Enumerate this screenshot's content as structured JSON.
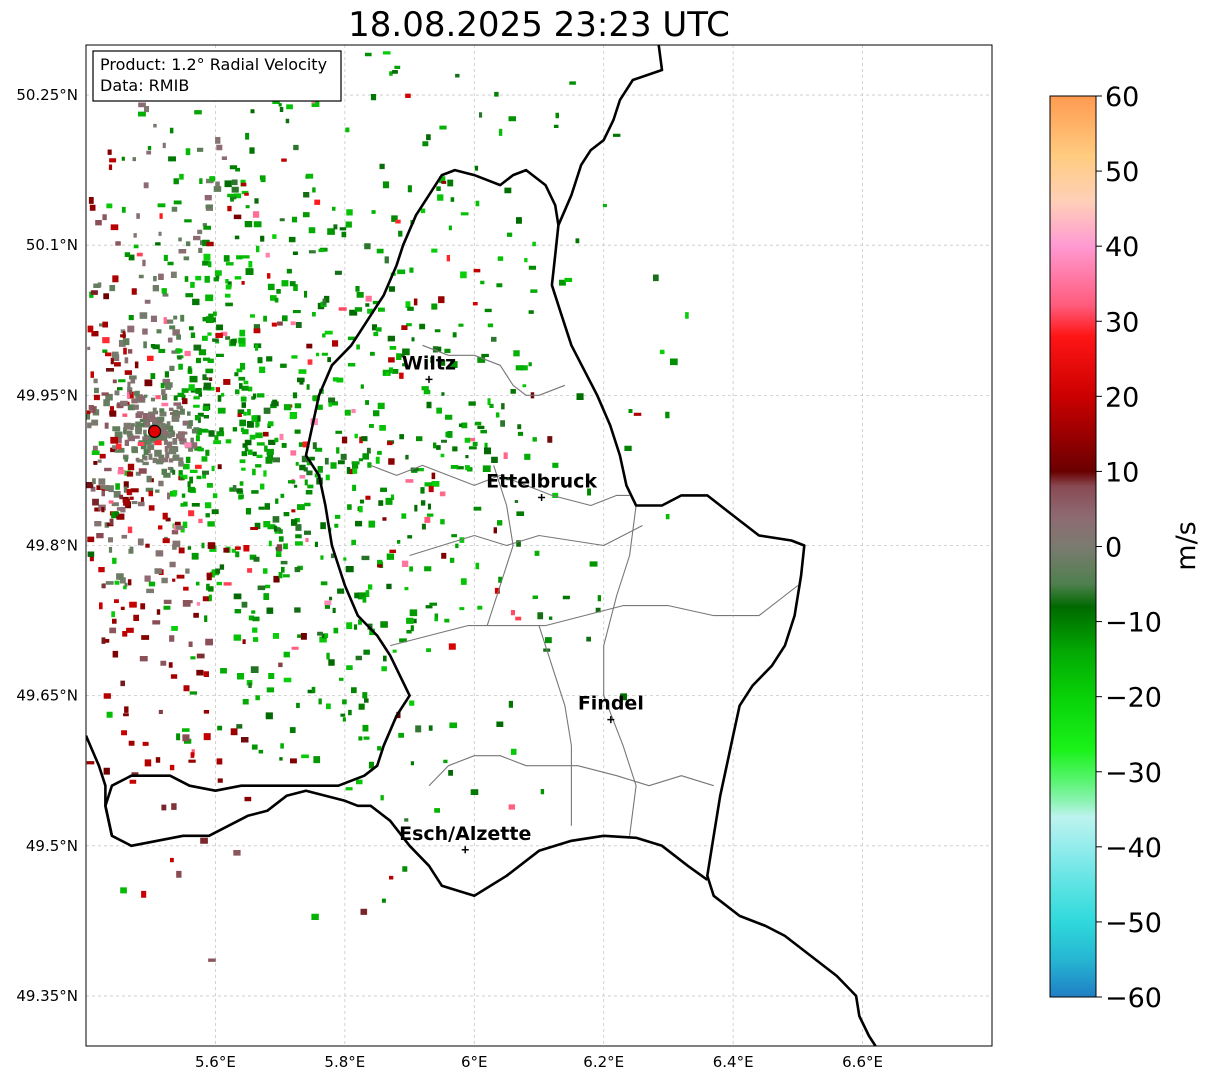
{
  "map": {
    "title": "18.08.2025 23:23 UTC",
    "info_box": {
      "product": "Product: 1.2° Radial Velocity",
      "data": "Data: RMIB"
    },
    "extent": {
      "lon_min": 5.4,
      "lon_max": 6.8,
      "lat_min": 49.3,
      "lat_max": 50.3
    },
    "lon_ticks": [
      {
        "value": 5.6,
        "label": "5.6°E"
      },
      {
        "value": 5.8,
        "label": "5.8°E"
      },
      {
        "value": 6.0,
        "label": "6°E"
      },
      {
        "value": 6.2,
        "label": "6.2°E"
      },
      {
        "value": 6.4,
        "label": "6.4°E"
      },
      {
        "value": 6.6,
        "label": "6.6°E"
      }
    ],
    "lat_ticks": [
      {
        "value": 50.25,
        "label": "50.25°N"
      },
      {
        "value": 50.1,
        "label": "50.1°N"
      },
      {
        "value": 49.95,
        "label": "49.95°N"
      },
      {
        "value": 49.8,
        "label": "49.8°N"
      },
      {
        "value": 49.65,
        "label": "49.65°N"
      },
      {
        "value": 49.5,
        "label": "49.5°N"
      },
      {
        "value": 49.35,
        "label": "49.35°N"
      }
    ],
    "radar_site": {
      "lon": 5.506,
      "lat": 49.914
    },
    "cities": [
      {
        "name": "Wiltz",
        "lon": 5.93,
        "lat": 49.966
      },
      {
        "name": "Ettelbruck",
        "lon": 6.104,
        "lat": 49.848
      },
      {
        "name": "Findel",
        "lon": 6.211,
        "lat": 49.626
      },
      {
        "name": "Esch/Alzette",
        "lon": 5.986,
        "lat": 49.496
      }
    ],
    "grid": true,
    "colorbar": {
      "label": "m/s",
      "min": -60,
      "max": 60,
      "ticks": [
        {
          "value": 60,
          "label": "60"
        },
        {
          "value": 50,
          "label": "50"
        },
        {
          "value": 40,
          "label": "40"
        },
        {
          "value": 30,
          "label": "30"
        },
        {
          "value": 20,
          "label": "20"
        },
        {
          "value": 10,
          "label": "10"
        },
        {
          "value": 0,
          "label": "0"
        },
        {
          "value": -10,
          "label": "−10"
        },
        {
          "value": -20,
          "label": "−20"
        },
        {
          "value": -30,
          "label": "−30"
        },
        {
          "value": -40,
          "label": "−40"
        },
        {
          "value": -50,
          "label": "−50"
        },
        {
          "value": -60,
          "label": "−60"
        }
      ],
      "stops": [
        {
          "value": -60,
          "color": "#1f7fc4"
        },
        {
          "value": -55,
          "color": "#26b6d2"
        },
        {
          "value": -50,
          "color": "#2fd9dc"
        },
        {
          "value": -45,
          "color": "#5ee3e3"
        },
        {
          "value": -40,
          "color": "#94ecec"
        },
        {
          "value": -36,
          "color": "#bdf3ef"
        },
        {
          "value": -34,
          "color": "#8ef3b4"
        },
        {
          "value": -31,
          "color": "#55f46d"
        },
        {
          "value": -27,
          "color": "#19f219"
        },
        {
          "value": -20,
          "color": "#08d108"
        },
        {
          "value": -14,
          "color": "#03a903"
        },
        {
          "value": -8,
          "color": "#006900"
        },
        {
          "value": -5,
          "color": "#4f7f4f"
        },
        {
          "value": 0,
          "color": "#7b7b70"
        },
        {
          "value": 4,
          "color": "#8e6a72"
        },
        {
          "value": 8,
          "color": "#894a52"
        },
        {
          "value": 10,
          "color": "#6a0000"
        },
        {
          "value": 20,
          "color": "#cc0000"
        },
        {
          "value": 28,
          "color": "#ff1515"
        },
        {
          "value": 32,
          "color": "#ff5a7a"
        },
        {
          "value": 40,
          "color": "#ff9ad2"
        },
        {
          "value": 46,
          "color": "#ffd0b8"
        },
        {
          "value": 52,
          "color": "#ffcc80"
        },
        {
          "value": 60,
          "color": "#ff9a50"
        }
      ]
    },
    "colors": {
      "border": "#000000",
      "canton_border": "#777777",
      "grid": "#c8c8c8",
      "radar_marker": "#e00000"
    },
    "country_border": [
      [
        6.285,
        50.3
      ],
      [
        6.29,
        50.275
      ],
      [
        6.245,
        50.265
      ],
      [
        6.225,
        50.245
      ],
      [
        6.215,
        50.225
      ],
      [
        6.2,
        50.205
      ],
      [
        6.18,
        50.195
      ],
      [
        6.165,
        50.18
      ],
      [
        6.15,
        50.15
      ],
      [
        6.14,
        50.135
      ],
      [
        6.13,
        50.12
      ],
      [
        6.125,
        50.09
      ],
      [
        6.12,
        50.06
      ],
      [
        6.135,
        50.03
      ],
      [
        6.15,
        50.0
      ],
      [
        6.17,
        49.975
      ],
      [
        6.19,
        49.95
      ],
      [
        6.21,
        49.92
      ],
      [
        6.225,
        49.89
      ],
      [
        6.235,
        49.86
      ],
      [
        6.25,
        49.84
      ],
      [
        6.29,
        49.84
      ],
      [
        6.32,
        49.85
      ],
      [
        6.36,
        49.85
      ],
      [
        6.4,
        49.83
      ],
      [
        6.44,
        49.81
      ],
      [
        6.49,
        49.805
      ],
      [
        6.51,
        49.8
      ],
      [
        6.505,
        49.77
      ],
      [
        6.495,
        49.73
      ],
      [
        6.48,
        49.7
      ],
      [
        6.46,
        49.68
      ],
      [
        6.43,
        49.66
      ],
      [
        6.41,
        49.64
      ],
      [
        6.4,
        49.61
      ],
      [
        6.39,
        49.58
      ],
      [
        6.38,
        49.55
      ],
      [
        6.37,
        49.51
      ],
      [
        6.36,
        49.47
      ],
      [
        6.37,
        49.45
      ],
      [
        6.41,
        49.43
      ],
      [
        6.45,
        49.42
      ],
      [
        6.48,
        49.41
      ],
      [
        6.52,
        49.39
      ],
      [
        6.56,
        49.37
      ],
      [
        6.59,
        49.35
      ],
      [
        6.595,
        49.33
      ],
      [
        6.61,
        49.31
      ],
      [
        6.62,
        49.3
      ]
    ],
    "lu_border": [
      [
        6.36,
        49.466
      ],
      [
        6.33,
        49.48
      ],
      [
        6.29,
        49.5
      ],
      [
        6.25,
        49.508
      ],
      [
        6.2,
        49.51
      ],
      [
        6.15,
        49.505
      ],
      [
        6.1,
        49.495
      ],
      [
        6.05,
        49.47
      ],
      [
        6.0,
        49.45
      ],
      [
        5.95,
        49.46
      ],
      [
        5.93,
        49.48
      ],
      [
        5.9,
        49.5
      ],
      [
        5.87,
        49.525
      ],
      [
        5.84,
        49.54
      ],
      [
        5.82,
        49.54
      ],
      [
        5.8,
        49.545
      ],
      [
        5.77,
        49.55
      ],
      [
        5.74,
        49.555
      ],
      [
        5.71,
        49.55
      ],
      [
        5.68,
        49.535
      ],
      [
        5.65,
        49.53
      ],
      [
        5.62,
        49.52
      ],
      [
        5.59,
        49.51
      ],
      [
        5.55,
        49.51
      ],
      [
        5.51,
        49.505
      ],
      [
        5.47,
        49.5
      ],
      [
        5.44,
        49.51
      ],
      [
        5.43,
        49.54
      ],
      [
        5.44,
        49.56
      ],
      [
        5.47,
        49.57
      ],
      [
        5.5,
        49.57
      ],
      [
        5.53,
        49.57
      ],
      [
        5.56,
        49.56
      ],
      [
        5.6,
        49.555
      ],
      [
        5.64,
        49.56
      ],
      [
        5.7,
        49.56
      ],
      [
        5.75,
        49.56
      ],
      [
        5.79,
        49.56
      ],
      [
        5.83,
        49.57
      ],
      [
        5.85,
        49.58
      ],
      [
        5.86,
        49.6
      ],
      [
        5.88,
        49.63
      ],
      [
        5.9,
        49.65
      ],
      [
        5.87,
        49.69
      ],
      [
        5.85,
        49.71
      ],
      [
        5.82,
        49.73
      ],
      [
        5.8,
        49.76
      ],
      [
        5.78,
        49.8
      ],
      [
        5.77,
        49.84
      ],
      [
        5.76,
        49.87
      ],
      [
        5.74,
        49.89
      ],
      [
        5.75,
        49.92
      ],
      [
        5.76,
        49.95
      ],
      [
        5.78,
        49.98
      ],
      [
        5.81,
        50.0
      ],
      [
        5.84,
        50.03
      ],
      [
        5.86,
        50.05
      ],
      [
        5.88,
        50.08
      ],
      [
        5.89,
        50.1
      ],
      [
        5.91,
        50.13
      ],
      [
        5.93,
        50.15
      ],
      [
        5.95,
        50.17
      ],
      [
        5.97,
        50.175
      ],
      [
        6.0,
        50.17
      ],
      [
        6.02,
        50.165
      ],
      [
        6.04,
        50.16
      ],
      [
        6.06,
        50.17
      ],
      [
        6.08,
        50.175
      ],
      [
        6.11,
        50.16
      ],
      [
        6.125,
        50.14
      ],
      [
        6.13,
        50.12
      ]
    ],
    "fr_border": [
      [
        5.4,
        49.61
      ],
      [
        5.42,
        49.58
      ],
      [
        5.43,
        49.56
      ],
      [
        5.43,
        49.54
      ],
      [
        5.44,
        49.51
      ]
    ],
    "canton_borders": [
      [
        [
          5.92,
          50.0
        ],
        [
          5.96,
          49.99
        ],
        [
          6.0,
          49.99
        ],
        [
          6.04,
          49.98
        ],
        [
          6.06,
          49.96
        ],
        [
          6.08,
          49.95
        ],
        [
          6.1,
          49.95
        ],
        [
          6.14,
          49.96
        ]
      ],
      [
        [
          5.84,
          49.88
        ],
        [
          5.88,
          49.87
        ],
        [
          5.92,
          49.88
        ],
        [
          5.96,
          49.87
        ],
        [
          6.0,
          49.86
        ],
        [
          6.04,
          49.87
        ],
        [
          6.08,
          49.86
        ],
        [
          6.12,
          49.85
        ],
        [
          6.18,
          49.84
        ],
        [
          6.22,
          49.85
        ],
        [
          6.24,
          49.85
        ]
      ],
      [
        [
          5.9,
          49.79
        ],
        [
          5.95,
          49.8
        ],
        [
          6.0,
          49.81
        ],
        [
          6.05,
          49.8
        ],
        [
          6.1,
          49.81
        ],
        [
          6.15,
          49.805
        ],
        [
          6.2,
          49.8
        ],
        [
          6.26,
          49.82
        ]
      ],
      [
        [
          5.87,
          49.7
        ],
        [
          5.93,
          49.71
        ],
        [
          5.99,
          49.72
        ],
        [
          6.05,
          49.72
        ],
        [
          6.11,
          49.72
        ],
        [
          6.17,
          49.73
        ],
        [
          6.23,
          49.74
        ],
        [
          6.3,
          49.74
        ],
        [
          6.37,
          49.73
        ],
        [
          6.44,
          49.73
        ],
        [
          6.5,
          49.76
        ]
      ],
      [
        [
          5.93,
          49.56
        ],
        [
          5.96,
          49.58
        ],
        [
          6.0,
          49.59
        ],
        [
          6.04,
          49.59
        ],
        [
          6.08,
          49.58
        ],
        [
          6.12,
          49.58
        ],
        [
          6.16,
          49.58
        ],
        [
          6.22,
          49.57
        ],
        [
          6.27,
          49.56
        ],
        [
          6.32,
          49.57
        ],
        [
          6.37,
          49.56
        ]
      ],
      [
        [
          6.1,
          49.72
        ],
        [
          6.12,
          49.68
        ],
        [
          6.14,
          49.64
        ],
        [
          6.15,
          49.6
        ],
        [
          6.15,
          49.56
        ],
        [
          6.15,
          49.52
        ]
      ],
      [
        [
          6.25,
          49.84
        ],
        [
          6.24,
          49.79
        ],
        [
          6.22,
          49.75
        ],
        [
          6.2,
          49.7
        ],
        [
          6.2,
          49.65
        ],
        [
          6.23,
          49.6
        ],
        [
          6.25,
          49.56
        ],
        [
          6.24,
          49.51
        ]
      ],
      [
        [
          6.03,
          49.88
        ],
        [
          6.05,
          49.84
        ],
        [
          6.06,
          49.8
        ],
        [
          6.04,
          49.76
        ],
        [
          6.02,
          49.72
        ]
      ]
    ]
  }
}
